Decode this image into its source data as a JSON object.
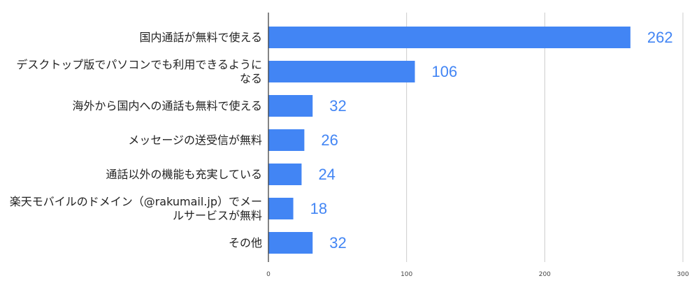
{
  "chart_data": {
    "type": "bar",
    "orientation": "horizontal",
    "categories": [
      [
        "国内通話が無料で使える"
      ],
      [
        "デスクトップ版でパソコンでも利用できるように",
        "なる"
      ],
      [
        "海外から国内への通話も無料で使える"
      ],
      [
        "メッセージの送受信が無料"
      ],
      [
        "通話以外の機能も充実している"
      ],
      [
        "楽天モバイルのドメイン（@rakumail.jp）でメー",
        "ルサービスが無料"
      ],
      [
        "その他"
      ]
    ],
    "values": [
      262,
      106,
      32,
      26,
      24,
      18,
      32
    ],
    "value_labels": [
      "262",
      "106",
      "32",
      "26",
      "24",
      "18",
      "32"
    ],
    "xlim": [
      0,
      300
    ],
    "x_ticks": [
      0,
      100,
      200,
      300
    ],
    "x_tick_labels": [
      "0",
      "100",
      "200",
      "300"
    ],
    "grid": true,
    "legend": "none",
    "title": "",
    "xlabel": "",
    "ylabel": "",
    "colors": {
      "bar": "#4285f4",
      "value_label": "#4285f4",
      "grid": "#cccccc"
    }
  }
}
